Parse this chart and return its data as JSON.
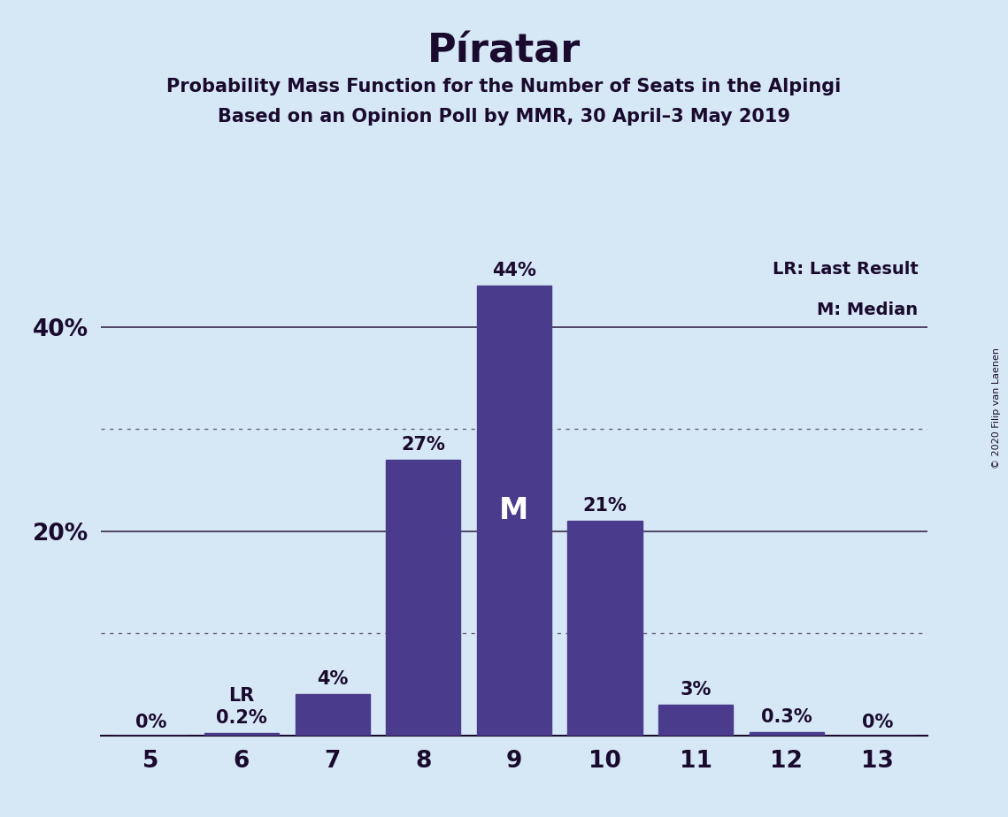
{
  "title": "Píratar",
  "subtitle1": "Probability Mass Function for the Number of Seats in the Alpingi",
  "subtitle2": "Based on an Opinion Poll by MMR, 30 April–3 May 2019",
  "copyright": "© 2020 Filip van Laenen",
  "seats": [
    5,
    6,
    7,
    8,
    9,
    10,
    11,
    12,
    13
  ],
  "probabilities": [
    0.0,
    0.2,
    4.0,
    27.0,
    44.0,
    21.0,
    3.0,
    0.3,
    0.0
  ],
  "labels": [
    "0%",
    "0.2%",
    "4%",
    "27%",
    "44%",
    "21%",
    "3%",
    "0.3%",
    "0%"
  ],
  "bar_color": "#4B3B8C",
  "background_color": "#D6E8F5",
  "text_color": "#1a0a2e",
  "median_seat": 9,
  "median_label": "M",
  "lr_seat": 6,
  "lr_label": "LR",
  "legend_lr": "LR: Last Result",
  "legend_m": "M: Median",
  "ylim": [
    0,
    48
  ],
  "dotted_grid": [
    10,
    30
  ],
  "solid_grid": [
    20,
    40
  ],
  "ytick_positions": [
    20,
    40
  ],
  "ytick_labels": [
    "20%",
    "40%"
  ]
}
